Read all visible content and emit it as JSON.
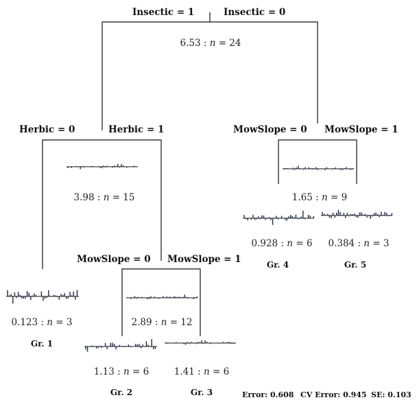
{
  "splits": {
    "insectic_1": "Insectic = 1",
    "insectic_0": "Insectic = 0",
    "herbic_0": "Herbic = 0",
    "herbic_1": "Herbic = 1",
    "mowslope_0_right": "MowSlope = 0",
    "mowslope_1_right": "MowSlope = 1",
    "mowslope_0_left": "MowSlope = 0",
    "mowslope_1_left": "MowSlope = 1"
  },
  "nodes": {
    "root": {
      "value": "6.53",
      "sep": " : ",
      "n_label": "n",
      "n_eq": " = 24"
    },
    "herbic": {
      "value": "3.98",
      "sep": " : ",
      "n_label": "n",
      "n_eq": " = 15"
    },
    "mowslope_right": {
      "value": "1.65",
      "sep": " : ",
      "n_label": "n",
      "n_eq": " = 9"
    },
    "mowslope_left": {
      "value": "2.89",
      "sep": " : ",
      "n_label": "n",
      "n_eq": " = 12"
    }
  },
  "leaves": {
    "gr1": {
      "value": "0.123",
      "sep": " : ",
      "n_label": "n",
      "n_eq": " = 3",
      "group": "Gr. 1"
    },
    "gr2": {
      "value": "1.13",
      "sep": " : ",
      "n_label": "n",
      "n_eq": " = 6",
      "group": "Gr. 2"
    },
    "gr3": {
      "value": "1.41",
      "sep": " : ",
      "n_label": "n",
      "n_eq": " = 6",
      "group": "Gr. 3"
    },
    "gr4": {
      "value": "0.928",
      "sep": " : ",
      "n_label": "n",
      "n_eq": " = 6",
      "group": "Gr. 4"
    },
    "gr5": {
      "value": "0.384",
      "sep": " : ",
      "n_label": "n",
      "n_eq": " = 3",
      "group": "Gr. 5"
    }
  },
  "footer": {
    "error": "Error: 0.608",
    "cv_error": "CV Error: 0.945",
    "se": "SE: 0.103"
  }
}
